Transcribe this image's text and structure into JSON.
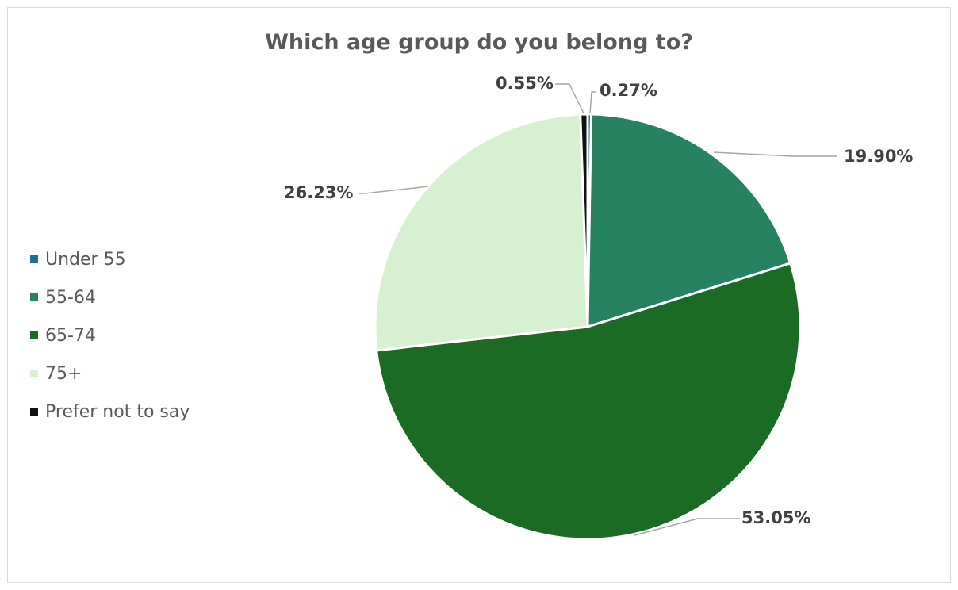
{
  "chart_data": {
    "type": "pie",
    "title": "Which age group do you belong to?",
    "categories": [
      "Under 55",
      "55-64",
      "65-74",
      "75+",
      "Prefer not to say"
    ],
    "values": [
      0.27,
      19.9,
      53.05,
      26.23,
      0.55
    ],
    "labels": [
      "0.27%",
      "19.90%",
      "53.05%",
      "26.23%",
      "0.55%"
    ],
    "colors": [
      "#1f6f8b",
      "#268260",
      "#1b6b25",
      "#d8f0d2",
      "#111111"
    ],
    "legend_position": "left"
  }
}
